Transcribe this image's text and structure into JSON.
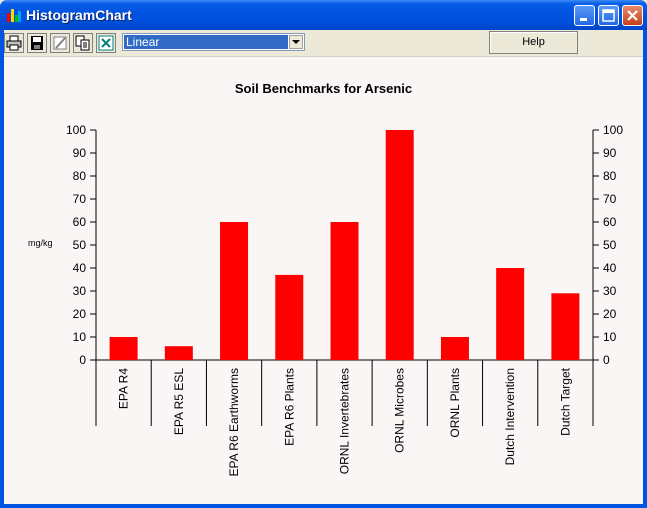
{
  "window": {
    "title": "HistogramChart",
    "buttons": [
      "minimize",
      "maximize",
      "close"
    ]
  },
  "toolbar": {
    "tools": [
      {
        "name": "print-icon",
        "tooltip": "Print"
      },
      {
        "name": "save-icon",
        "tooltip": "Save"
      },
      {
        "name": "edit-icon",
        "tooltip": "Edit"
      },
      {
        "name": "copy-icon",
        "tooltip": "Copy"
      },
      {
        "name": "excel-icon",
        "tooltip": "Export"
      }
    ],
    "scale_select": {
      "value": "Linear"
    },
    "help_label": "Help"
  },
  "chart_data": {
    "type": "bar",
    "title": "Soil Benchmarks for Arsenic",
    "ylabel": "mg/kg",
    "xlabel": "",
    "ylim": [
      0,
      100
    ],
    "yticks": [
      0,
      10,
      20,
      30,
      40,
      50,
      60,
      70,
      80,
      90,
      100
    ],
    "right_axis": true,
    "categories": [
      "EPA R4",
      "EPA R5 ESL",
      "EPA R6 Earthworms",
      "EPA R6 Plants",
      "ORNL Invertebrates",
      "ORNL Microbes",
      "ORNL Plants",
      "Dutch Intervention",
      "Dutch Target"
    ],
    "values": [
      10,
      6,
      60,
      37,
      60,
      100,
      10,
      40,
      29
    ],
    "bar_color": "#ff0000"
  }
}
